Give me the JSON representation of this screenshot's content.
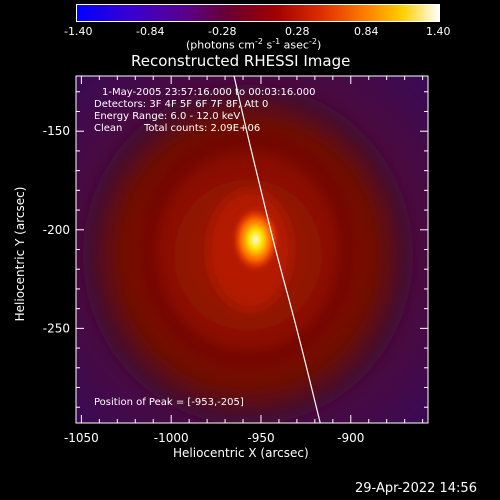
{
  "colorbar": {
    "ticks": [
      "-1.40",
      "-0.84",
      "-0.28",
      "0.28",
      "0.84",
      "1.40"
    ],
    "units_prefix": "(photons cm",
    "units_exp1": "-2",
    "units_mid": " s",
    "units_exp2": "-1",
    "units_mid2": " asec",
    "units_exp3": "-2",
    "units_suffix": ")"
  },
  "title": "Reconstructed RHESSI Image",
  "info": {
    "time_range": "1-May-2005 23:57:16.000 to 00:03:16.000",
    "detectors": "Detectors: 3F 4F 5F 6F 7F 8F, Att 0",
    "energy": "Energy Range: 6.0 - 12.0 keV",
    "clean": "Clean",
    "total_counts": "Total counts: 2.09E+06",
    "peak": "Position of Peak = [-953,-205]"
  },
  "footer_date": "29-Apr-2022 14:56",
  "chart_data": {
    "type": "heatmap",
    "title": "Reconstructed RHESSI Image",
    "xlabel": "Heliocentric X (arcsec)",
    "ylabel": "Heliocentric Y (arcsec)",
    "xlim": [
      -1053,
      -957
    ],
    "ylim": [
      -298,
      -122
    ],
    "x_ticks": [
      "-1050",
      "-1000",
      "-950",
      "-900"
    ],
    "y_ticks": [
      "-150",
      "-200",
      "-250"
    ],
    "x_tick_values": [
      -1050,
      -1000,
      -950,
      -900
    ],
    "y_tick_values": [
      -150,
      -200,
      -250
    ],
    "colorbar_range": [
      -1.4,
      1.4
    ],
    "peak": {
      "x": -953,
      "y": -205
    },
    "limb_curve": [
      [
        -965,
        -122
      ],
      [
        -958,
        -150
      ],
      [
        -950,
        -180
      ],
      [
        -942,
        -210
      ],
      [
        -930,
        -250
      ],
      [
        -917,
        -298
      ]
    ]
  }
}
